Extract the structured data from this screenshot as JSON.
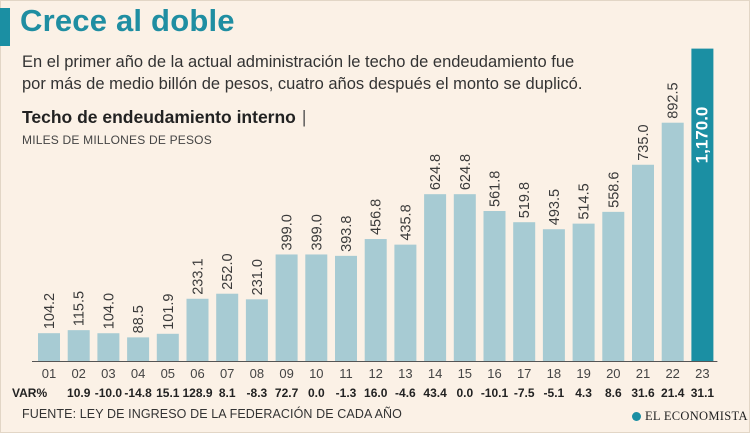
{
  "header": {
    "title": "Crece al doble",
    "subtitle": "En el primer año de la actual administración le techo de endeudamiento fue por más de medio billón de pesos, cuatro años después el monto se duplicó."
  },
  "chart_data": {
    "type": "bar",
    "title": "Techo de endeudamiento interno",
    "unit": "MILES DE MILLONES DE PESOS",
    "categories": [
      "01",
      "02",
      "03",
      "04",
      "05",
      "06",
      "07",
      "08",
      "09",
      "10",
      "11",
      "12",
      "13",
      "14",
      "15",
      "16",
      "17",
      "18",
      "19",
      "20",
      "21",
      "22",
      "23"
    ],
    "values": [
      104.2,
      115.5,
      104.0,
      88.5,
      101.9,
      233.1,
      252.0,
      231.0,
      399.0,
      399.0,
      393.8,
      456.8,
      435.8,
      624.8,
      624.8,
      561.8,
      519.8,
      493.5,
      514.5,
      558.6,
      735.0,
      892.5,
      1170.0
    ],
    "value_labels": [
      "104.2",
      "115.5",
      "104.0",
      "88.5",
      "101.9",
      "233.1",
      "252.0",
      "231.0",
      "399.0",
      "399.0",
      "393.8",
      "456.8",
      "435.8",
      "624.8",
      "624.8",
      "561.8",
      "519.8",
      "493.5",
      "514.5",
      "558.6",
      "735.0",
      "892.5",
      "1,170.0"
    ],
    "var_label": "VAR%",
    "var_pct": [
      "10.9",
      "-10.0",
      "-14.8",
      "15.1",
      "128.9",
      "8.1",
      "-8.3",
      "72.7",
      "0.0",
      "-1.3",
      "16.0",
      "-4.6",
      "43.4",
      "0.0",
      "-10.1",
      "-7.5",
      "-5.1",
      "4.3",
      "8.6",
      "31.6",
      "21.4",
      "31.1"
    ],
    "colors": {
      "bar": "#a7cbd3",
      "highlight": "#1b8fa3",
      "baseline": "#555555"
    },
    "grid": false
  },
  "footer": {
    "source": "FUENTE: LEY DE INGRESO DE LA FEDERACIÓN DE CADA AÑO",
    "brand": "EL ECONOMISTA"
  }
}
